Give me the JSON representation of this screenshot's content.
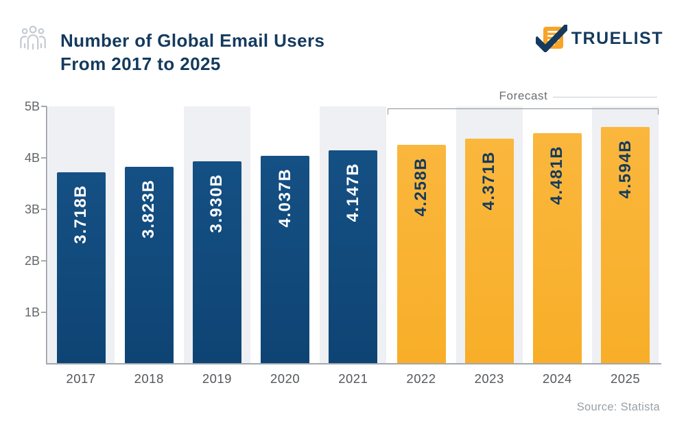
{
  "header": {
    "title_line1": "Number of Global Email Users",
    "title_line2": "From 2017 to 2025"
  },
  "logo": {
    "text": "TRUELIST",
    "icon": "checklist-checkmark-icon"
  },
  "chart_data": {
    "type": "bar",
    "title": "Number of Global Email Users From 2017 to 2025",
    "categories": [
      "2017",
      "2018",
      "2019",
      "2020",
      "2021",
      "2022",
      "2023",
      "2024",
      "2025"
    ],
    "values": [
      3.718,
      3.823,
      3.93,
      4.037,
      4.147,
      4.258,
      4.371,
      4.481,
      4.594
    ],
    "bar_labels": [
      "3.718B",
      "3.823B",
      "3.930B",
      "4.037B",
      "4.147B",
      "4.258B",
      "4.371B",
      "4.481B",
      "4.594B"
    ],
    "unit": "billions of email users",
    "xlabel": "",
    "ylabel": "",
    "y_ticks": [
      "5B",
      "4B",
      "3B",
      "2B",
      "1B"
    ],
    "y_tick_values": [
      5,
      4,
      3,
      2,
      1
    ],
    "ylim": [
      0,
      5
    ],
    "grid": false,
    "legend": "none",
    "forecast_label": "Forecast",
    "forecast_start_category": "2022",
    "forecast_start_index": 5,
    "series_colors": {
      "actual": "#0f4878",
      "forecast": "#f9b233"
    }
  },
  "footer": {
    "source": "Source: Statista"
  },
  "colors": {
    "title_navy": "#143a5e",
    "bar_actual": "#0f4878",
    "bar_forecast": "#f9b233",
    "bar_label_on_actual": "#ffffff",
    "bar_label_on_forecast": "#143a5e",
    "column_background": "#eef0f3",
    "axis_line": "#a2a8ad",
    "tick_text": "#5f6368",
    "forecast_text": "#6a6e72",
    "bracket_line": "#8d9196",
    "source_text": "#9aa0a6",
    "people_icon_gray": "#c5ccd3",
    "logo_orange": "#f7a428"
  }
}
